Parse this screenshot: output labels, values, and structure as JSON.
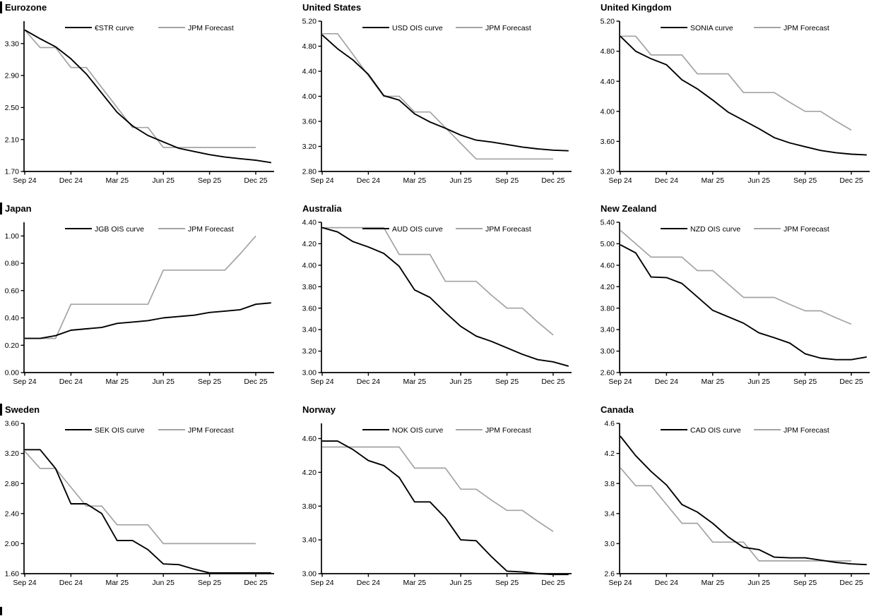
{
  "page": {
    "background": "#ffffff",
    "text_color": "#000000",
    "forecast_gray": "#a3a3a3",
    "curve_black": "#000000",
    "bottom_section_marker": true
  },
  "chart_data": [
    {
      "type": "line",
      "title": "Eurozone",
      "left_marker": true,
      "legend_position": "top-center-inside",
      "grid": false,
      "y_axis": {
        "min": 1.7,
        "max": 3.58,
        "ticks": [
          1.7,
          2.1,
          2.5,
          2.9,
          3.3
        ],
        "decimals": 2
      },
      "x_axis": {
        "tick_positions": [
          0,
          3,
          6,
          9,
          12,
          15
        ],
        "tick_labels": [
          "Sep 24",
          "Dec 24",
          "Mar 25",
          "Jun 25",
          "Sep 25",
          "Dec 25"
        ]
      },
      "series": [
        {
          "name": "€STR curve",
          "color": "#000000",
          "line_width": 1.9,
          "x": [
            0,
            1,
            2,
            3,
            4,
            5,
            6,
            7,
            8,
            9,
            10,
            11,
            12,
            13,
            14,
            15,
            16
          ],
          "y": [
            3.47,
            3.36,
            3.26,
            3.11,
            2.92,
            2.68,
            2.44,
            2.27,
            2.15,
            2.07,
            1.99,
            1.95,
            1.91,
            1.88,
            1.86,
            1.84,
            1.81
          ]
        },
        {
          "name": "JPM Forecast",
          "color": "#a3a3a3",
          "line_width": 1.7,
          "x": [
            0,
            1,
            2,
            3,
            4,
            5,
            6,
            7,
            8,
            9,
            10,
            11,
            12,
            13,
            14,
            15
          ],
          "y": [
            3.47,
            3.25,
            3.25,
            3.0,
            3.0,
            2.75,
            2.5,
            2.25,
            2.25,
            2.0,
            2.0,
            2.0,
            2.0,
            2.0,
            2.0,
            2.0
          ]
        }
      ]
    },
    {
      "type": "line",
      "title": "United States",
      "left_marker": false,
      "legend_position": "top-center-inside",
      "grid": false,
      "y_axis": {
        "min": 2.8,
        "max": 5.2,
        "ticks": [
          2.8,
          3.2,
          3.6,
          4.0,
          4.4,
          4.8,
          5.2
        ],
        "decimals": 2
      },
      "x_axis": {
        "tick_positions": [
          0,
          3,
          6,
          9,
          12,
          15
        ],
        "tick_labels": [
          "Sep 24",
          "Dec 24",
          "Mar 25",
          "Jun 25",
          "Sep 25",
          "Dec 25"
        ]
      },
      "series": [
        {
          "name": "USD OIS curve",
          "color": "#000000",
          "line_width": 1.9,
          "x": [
            0,
            1,
            2,
            3,
            4,
            5,
            6,
            7,
            8,
            9,
            10,
            11,
            12,
            13,
            14,
            15,
            16
          ],
          "y": [
            4.98,
            4.76,
            4.58,
            4.35,
            4.01,
            3.94,
            3.72,
            3.59,
            3.49,
            3.38,
            3.3,
            3.27,
            3.23,
            3.19,
            3.16,
            3.14,
            3.13
          ]
        },
        {
          "name": "JPM Forecast",
          "color": "#a3a3a3",
          "line_width": 1.7,
          "x": [
            0,
            1,
            2,
            3,
            4,
            5,
            6,
            7,
            8,
            9,
            10,
            11,
            12,
            13,
            14,
            15
          ],
          "y": [
            5.0,
            5.0,
            4.67,
            4.33,
            4.0,
            4.0,
            3.75,
            3.75,
            3.5,
            3.25,
            3.0,
            3.0,
            3.0,
            3.0,
            3.0,
            3.0
          ]
        }
      ]
    },
    {
      "type": "line",
      "title": "United Kingdom",
      "left_marker": false,
      "legend_position": "top-center-inside",
      "grid": false,
      "y_axis": {
        "min": 3.2,
        "max": 5.2,
        "ticks": [
          3.2,
          3.6,
          4.0,
          4.4,
          4.8,
          5.2
        ],
        "decimals": 2
      },
      "x_axis": {
        "tick_positions": [
          0,
          3,
          6,
          9,
          12,
          15
        ],
        "tick_labels": [
          "Sep 24",
          "Dec 24",
          "Mar 25",
          "Jun 25",
          "Sep 25",
          "Dec 25"
        ]
      },
      "series": [
        {
          "name": "SONIA curve",
          "color": "#000000",
          "line_width": 1.9,
          "x": [
            0,
            1,
            2,
            3,
            4,
            5,
            6,
            7,
            8,
            9,
            10,
            11,
            12,
            13,
            14,
            15,
            16
          ],
          "y": [
            5.0,
            4.8,
            4.7,
            4.62,
            4.42,
            4.3,
            4.15,
            3.99,
            3.88,
            3.77,
            3.65,
            3.58,
            3.53,
            3.48,
            3.45,
            3.43,
            3.42
          ]
        },
        {
          "name": "JPM Forecast",
          "color": "#a3a3a3",
          "line_width": 1.7,
          "x": [
            0,
            1,
            2,
            3,
            4,
            5,
            6,
            7,
            8,
            9,
            10,
            11,
            12,
            13,
            14,
            15
          ],
          "y": [
            5.0,
            5.0,
            4.75,
            4.75,
            4.75,
            4.5,
            4.5,
            4.5,
            4.25,
            4.25,
            4.25,
            4.12,
            4.0,
            4.0,
            3.87,
            3.75
          ]
        }
      ]
    },
    {
      "type": "line",
      "title": "Japan",
      "left_marker": true,
      "legend_position": "top-center-inside",
      "grid": false,
      "y_axis": {
        "min": 0.0,
        "max": 1.1,
        "ticks": [
          0.0,
          0.2,
          0.4,
          0.6,
          0.8,
          1.0
        ],
        "decimals": 2
      },
      "x_axis": {
        "tick_positions": [
          0,
          3,
          6,
          9,
          12,
          15
        ],
        "tick_labels": [
          "Sep 24",
          "Dec 24",
          "Mar 25",
          "Jun 25",
          "Sep 25",
          "Dec 25"
        ]
      },
      "series": [
        {
          "name": "JGB OIS curve",
          "color": "#000000",
          "line_width": 1.9,
          "x": [
            0,
            1,
            2,
            3,
            4,
            5,
            6,
            7,
            8,
            9,
            10,
            11,
            12,
            13,
            14,
            15,
            16
          ],
          "y": [
            0.25,
            0.25,
            0.27,
            0.31,
            0.32,
            0.33,
            0.36,
            0.37,
            0.38,
            0.4,
            0.41,
            0.42,
            0.44,
            0.45,
            0.46,
            0.5,
            0.51
          ]
        },
        {
          "name": "JPM Forecast",
          "color": "#a3a3a3",
          "line_width": 1.7,
          "x": [
            0,
            1,
            2,
            3,
            4,
            5,
            6,
            7,
            8,
            9,
            10,
            11,
            12,
            13,
            14,
            15
          ],
          "y": [
            0.25,
            0.25,
            0.25,
            0.5,
            0.5,
            0.5,
            0.5,
            0.5,
            0.5,
            0.75,
            0.75,
            0.75,
            0.75,
            0.75,
            0.87,
            1.0
          ]
        }
      ]
    },
    {
      "type": "line",
      "title": "Australia",
      "left_marker": false,
      "legend_position": "top-center-inside",
      "grid": false,
      "y_axis": {
        "min": 3.0,
        "max": 4.4,
        "ticks": [
          3.0,
          3.2,
          3.4,
          3.6,
          3.8,
          4.0,
          4.2,
          4.4
        ],
        "decimals": 2
      },
      "x_axis": {
        "tick_positions": [
          0,
          3,
          6,
          9,
          12,
          15
        ],
        "tick_labels": [
          "Sep 24",
          "Dec 24",
          "Mar 25",
          "Jun 25",
          "Sep 25",
          "Dec 25"
        ]
      },
      "series": [
        {
          "name": "AUD OIS curve",
          "color": "#000000",
          "line_width": 1.9,
          "x": [
            0,
            1,
            2,
            3,
            4,
            5,
            6,
            7,
            8,
            9,
            10,
            11,
            12,
            13,
            14,
            15,
            16
          ],
          "y": [
            4.35,
            4.31,
            4.22,
            4.17,
            4.11,
            3.99,
            3.77,
            3.7,
            3.56,
            3.43,
            3.34,
            3.29,
            3.23,
            3.17,
            3.12,
            3.1,
            3.06
          ]
        },
        {
          "name": "JPM Forecast",
          "color": "#a3a3a3",
          "line_width": 1.7,
          "x": [
            0,
            1,
            2,
            3,
            4,
            5,
            6,
            7,
            8,
            9,
            10,
            11,
            12,
            13,
            14,
            15
          ],
          "y": [
            4.35,
            4.35,
            4.35,
            4.35,
            4.35,
            4.1,
            4.1,
            4.1,
            3.85,
            3.85,
            3.85,
            3.72,
            3.6,
            3.6,
            3.47,
            3.35
          ]
        }
      ]
    },
    {
      "type": "line",
      "title": "New Zealand",
      "left_marker": false,
      "legend_position": "top-center-inside",
      "grid": false,
      "y_axis": {
        "min": 2.6,
        "max": 5.4,
        "ticks": [
          2.6,
          3.0,
          3.4,
          3.8,
          4.2,
          4.6,
          5.0,
          5.4
        ],
        "decimals": 2
      },
      "x_axis": {
        "tick_positions": [
          0,
          3,
          6,
          9,
          12,
          15
        ],
        "tick_labels": [
          "Sep 24",
          "Dec 24",
          "Mar 25",
          "Jun 25",
          "Sep 25",
          "Dec 25"
        ]
      },
      "series": [
        {
          "name": "NZD OIS curve",
          "color": "#000000",
          "line_width": 1.9,
          "x": [
            0,
            1,
            2,
            3,
            4,
            5,
            6,
            7,
            8,
            9,
            10,
            11,
            12,
            13,
            14,
            15,
            16
          ],
          "y": [
            4.98,
            4.83,
            4.38,
            4.37,
            4.26,
            4.01,
            3.76,
            3.64,
            3.52,
            3.34,
            3.25,
            3.15,
            2.95,
            2.87,
            2.84,
            2.84,
            2.89
          ]
        },
        {
          "name": "JPM Forecast",
          "color": "#a3a3a3",
          "line_width": 1.7,
          "x": [
            0,
            1,
            2,
            3,
            4,
            5,
            6,
            7,
            8,
            9,
            10,
            11,
            12,
            13,
            14,
            15
          ],
          "y": [
            5.25,
            5.0,
            4.75,
            4.75,
            4.75,
            4.5,
            4.5,
            4.25,
            4.0,
            4.0,
            4.0,
            3.87,
            3.75,
            3.75,
            3.62,
            3.5
          ]
        }
      ]
    },
    {
      "type": "line",
      "title": "Sweden",
      "left_marker": true,
      "legend_position": "top-center-inside",
      "grid": false,
      "y_axis": {
        "min": 1.6,
        "max": 3.6,
        "ticks": [
          1.6,
          2.0,
          2.4,
          2.8,
          3.2,
          3.6
        ],
        "decimals": 2
      },
      "x_axis": {
        "tick_positions": [
          0,
          3,
          6,
          9,
          12,
          15
        ],
        "tick_labels": [
          "Sep 24",
          "Dec 24",
          "Mar 25",
          "Jun 25",
          "Sep 25",
          "Dec 25"
        ]
      },
      "series": [
        {
          "name": "SEK OIS curve",
          "color": "#000000",
          "line_width": 1.9,
          "x": [
            0,
            1,
            2,
            3,
            4,
            5,
            6,
            7,
            8,
            9,
            10,
            11,
            12,
            13,
            14,
            15,
            16
          ],
          "y": [
            3.25,
            3.25,
            3.0,
            2.53,
            2.53,
            2.4,
            2.04,
            2.04,
            1.92,
            1.73,
            1.72,
            1.66,
            1.61,
            1.61,
            1.61,
            1.61,
            1.61
          ]
        },
        {
          "name": "JPM Forecast",
          "color": "#a3a3a3",
          "line_width": 1.7,
          "x": [
            0,
            1,
            2,
            3,
            4,
            5,
            6,
            7,
            8,
            9,
            10,
            11,
            12,
            13,
            14,
            15
          ],
          "y": [
            3.23,
            3.0,
            3.0,
            2.75,
            2.5,
            2.5,
            2.25,
            2.25,
            2.25,
            2.0,
            2.0,
            2.0,
            2.0,
            2.0,
            2.0,
            2.0
          ]
        }
      ]
    },
    {
      "type": "line",
      "title": "Norway",
      "left_marker": false,
      "legend_position": "top-center-inside",
      "grid": false,
      "y_axis": {
        "min": 3.0,
        "max": 4.78,
        "ticks": [
          3.0,
          3.4,
          3.8,
          4.2,
          4.6
        ],
        "decimals": 2
      },
      "x_axis": {
        "tick_positions": [
          0,
          3,
          6,
          9,
          12,
          15
        ],
        "tick_labels": [
          "Sep 24",
          "Dec 24",
          "Mar 25",
          "Jun 25",
          "Sep 25",
          "Dec 25"
        ]
      },
      "series": [
        {
          "name": "NOK OIS curve",
          "color": "#000000",
          "line_width": 1.9,
          "x": [
            0,
            1,
            2,
            3,
            4,
            5,
            6,
            7,
            8,
            9,
            10,
            11,
            12,
            13,
            14,
            15,
            16
          ],
          "y": [
            4.57,
            4.57,
            4.47,
            4.34,
            4.28,
            4.14,
            3.85,
            3.85,
            3.66,
            3.4,
            3.39,
            3.2,
            3.03,
            3.02,
            3.0,
            2.99,
            2.99
          ]
        },
        {
          "name": "JPM Forecast",
          "color": "#a3a3a3",
          "line_width": 1.7,
          "x": [
            0,
            1,
            2,
            3,
            4,
            5,
            6,
            7,
            8,
            9,
            10,
            11,
            12,
            13,
            14,
            15
          ],
          "y": [
            4.5,
            4.5,
            4.5,
            4.5,
            4.5,
            4.5,
            4.25,
            4.25,
            4.25,
            4.0,
            4.0,
            3.87,
            3.75,
            3.75,
            3.62,
            3.5
          ]
        }
      ]
    },
    {
      "type": "line",
      "title": "Canada",
      "left_marker": false,
      "legend_position": "top-center-inside",
      "grid": false,
      "y_axis": {
        "min": 2.6,
        "max": 4.6,
        "ticks": [
          2.6,
          3.0,
          3.4,
          3.8,
          4.2,
          4.6
        ],
        "decimals": 1
      },
      "x_axis": {
        "tick_positions": [
          0,
          3,
          6,
          9,
          12,
          15
        ],
        "tick_labels": [
          "Sep 24",
          "Dec 24",
          "Mar 25",
          "Jun 25",
          "Sep 25",
          "Dec 25"
        ]
      },
      "series": [
        {
          "name": "CAD OIS curve",
          "color": "#000000",
          "line_width": 1.9,
          "x": [
            0,
            1,
            2,
            3,
            4,
            5,
            6,
            7,
            8,
            9,
            10,
            11,
            12,
            13,
            14,
            15,
            16
          ],
          "y": [
            4.43,
            4.17,
            3.96,
            3.78,
            3.52,
            3.42,
            3.27,
            3.09,
            2.95,
            2.92,
            2.82,
            2.81,
            2.81,
            2.78,
            2.75,
            2.73,
            2.72
          ]
        },
        {
          "name": "JPM Forecast",
          "color": "#a3a3a3",
          "line_width": 1.7,
          "x": [
            0,
            1,
            2,
            3,
            4,
            5,
            6,
            7,
            8,
            9,
            10,
            11,
            12,
            13,
            14,
            15
          ],
          "y": [
            4.01,
            3.77,
            3.77,
            3.52,
            3.27,
            3.27,
            3.02,
            3.02,
            3.02,
            2.77,
            2.77,
            2.77,
            2.77,
            2.77,
            2.77,
            2.77
          ]
        }
      ]
    }
  ]
}
